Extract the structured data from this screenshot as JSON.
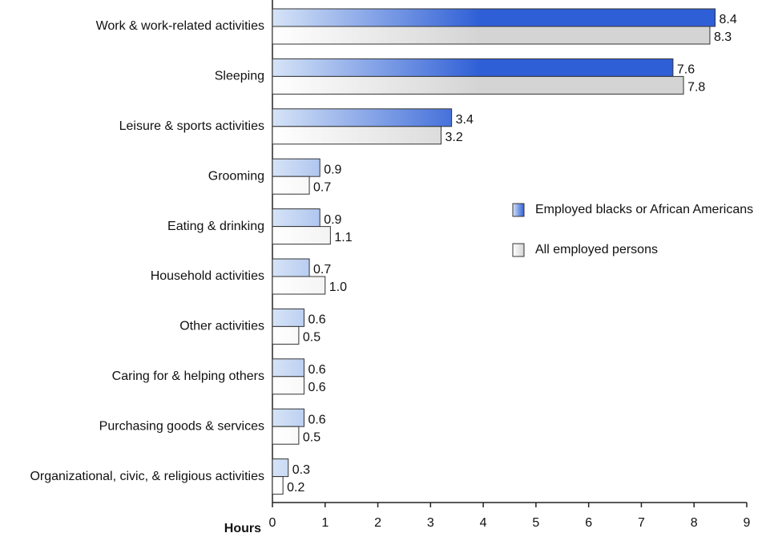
{
  "chart_data": {
    "type": "bar",
    "orientation": "horizontal",
    "categories": [
      "Work & work-related activities",
      "Sleeping",
      "Leisure & sports activities",
      "Grooming",
      "Eating & drinking",
      "Household activities",
      "Other activities",
      "Caring for & helping others",
      "Purchasing goods & services",
      "Organizational, civic, & religious activities"
    ],
    "series": [
      {
        "name": "Employed blacks or African Americans",
        "color": "#2f5fd6",
        "values": [
          8.4,
          7.6,
          3.4,
          0.9,
          0.9,
          0.7,
          0.6,
          0.6,
          0.6,
          0.3
        ]
      },
      {
        "name": "All employed persons",
        "color": "#d4d4d4",
        "values": [
          8.3,
          7.8,
          3.2,
          0.7,
          1.1,
          1.0,
          0.5,
          0.6,
          0.5,
          0.2
        ],
        "value_labels": [
          "8.3",
          "7.8",
          "3.2",
          "0.7",
          "1.1",
          "1.0",
          "0.5",
          "0.6",
          "0.5",
          "0.2"
        ]
      }
    ],
    "xlabel": "Hours",
    "xlim": [
      0,
      9
    ],
    "xticks": [
      0,
      1,
      2,
      3,
      4,
      5,
      6,
      7,
      8,
      9
    ],
    "grid": false,
    "legend": "right"
  }
}
